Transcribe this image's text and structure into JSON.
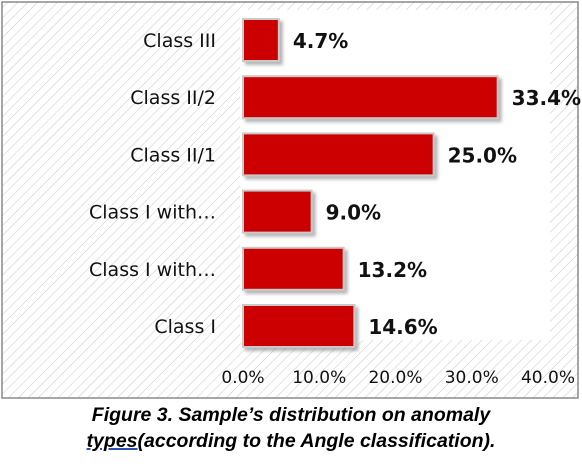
{
  "chart_data": {
    "type": "bar",
    "orientation": "horizontal",
    "categories": [
      "Class I",
      "Class I with…",
      "Class I with…",
      "Class II/1",
      "Class II/2",
      "Class III"
    ],
    "values": [
      14.6,
      13.2,
      9.0,
      25.0,
      33.4,
      4.7
    ],
    "data_labels": [
      "14.6%",
      "13.2%",
      "9.0%",
      "25.0%",
      "33.4%",
      "4.7%"
    ],
    "x_ticks": [
      "0.0%",
      "10.0%",
      "20.0%",
      "30.0%",
      "40.0%"
    ],
    "xlim": [
      0,
      40
    ],
    "grid": false,
    "legend": "none",
    "bar_color": "#cc0000",
    "background": "hatched"
  },
  "caption": {
    "line1": "Figure 3. Sample’s distribution on anomaly",
    "line2_underlined": "types",
    "line2_rest": "(according to the Angle classification)."
  }
}
